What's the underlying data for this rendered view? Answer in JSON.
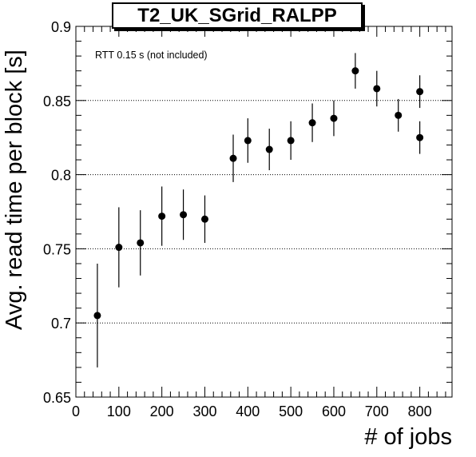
{
  "chart_data": {
    "type": "scatter",
    "title": "T2_UK_SGrid_RALPP",
    "annotation": "RTT 0.15 s (not included)",
    "xlabel": "# of jobs",
    "ylabel": "Avg. read time per block [s]",
    "xlim": [
      0,
      875
    ],
    "ylim": [
      0.65,
      0.9
    ],
    "x_ticks": [
      0,
      100,
      200,
      300,
      400,
      500,
      600,
      700,
      800
    ],
    "y_ticks": [
      0.65,
      0.7,
      0.75,
      0.8,
      0.85,
      0.9
    ],
    "y_tick_labels": [
      "0.65",
      "0.7",
      "0.75",
      "0.8",
      "0.85",
      "0.9"
    ],
    "grid": "horizontal dotted",
    "marker_color": "#000000",
    "points": [
      {
        "x": 50,
        "y": 0.705,
        "err": 0.035
      },
      {
        "x": 100,
        "y": 0.751,
        "err": 0.027
      },
      {
        "x": 150,
        "y": 0.754,
        "err": 0.022
      },
      {
        "x": 200,
        "y": 0.772,
        "err": 0.02
      },
      {
        "x": 250,
        "y": 0.773,
        "err": 0.017
      },
      {
        "x": 300,
        "y": 0.77,
        "err": 0.016
      },
      {
        "x": 366,
        "y": 0.811,
        "err": 0.016
      },
      {
        "x": 400,
        "y": 0.823,
        "err": 0.015
      },
      {
        "x": 450,
        "y": 0.817,
        "err": 0.014
      },
      {
        "x": 500,
        "y": 0.823,
        "err": 0.013
      },
      {
        "x": 550,
        "y": 0.835,
        "err": 0.013
      },
      {
        "x": 600,
        "y": 0.838,
        "err": 0.012
      },
      {
        "x": 650,
        "y": 0.87,
        "err": 0.012
      },
      {
        "x": 700,
        "y": 0.858,
        "err": 0.012
      },
      {
        "x": 750,
        "y": 0.84,
        "err": 0.011
      },
      {
        "x": 800,
        "y": 0.856,
        "err": 0.011
      },
      {
        "x": 800,
        "y": 0.825,
        "err": 0.011
      }
    ]
  }
}
